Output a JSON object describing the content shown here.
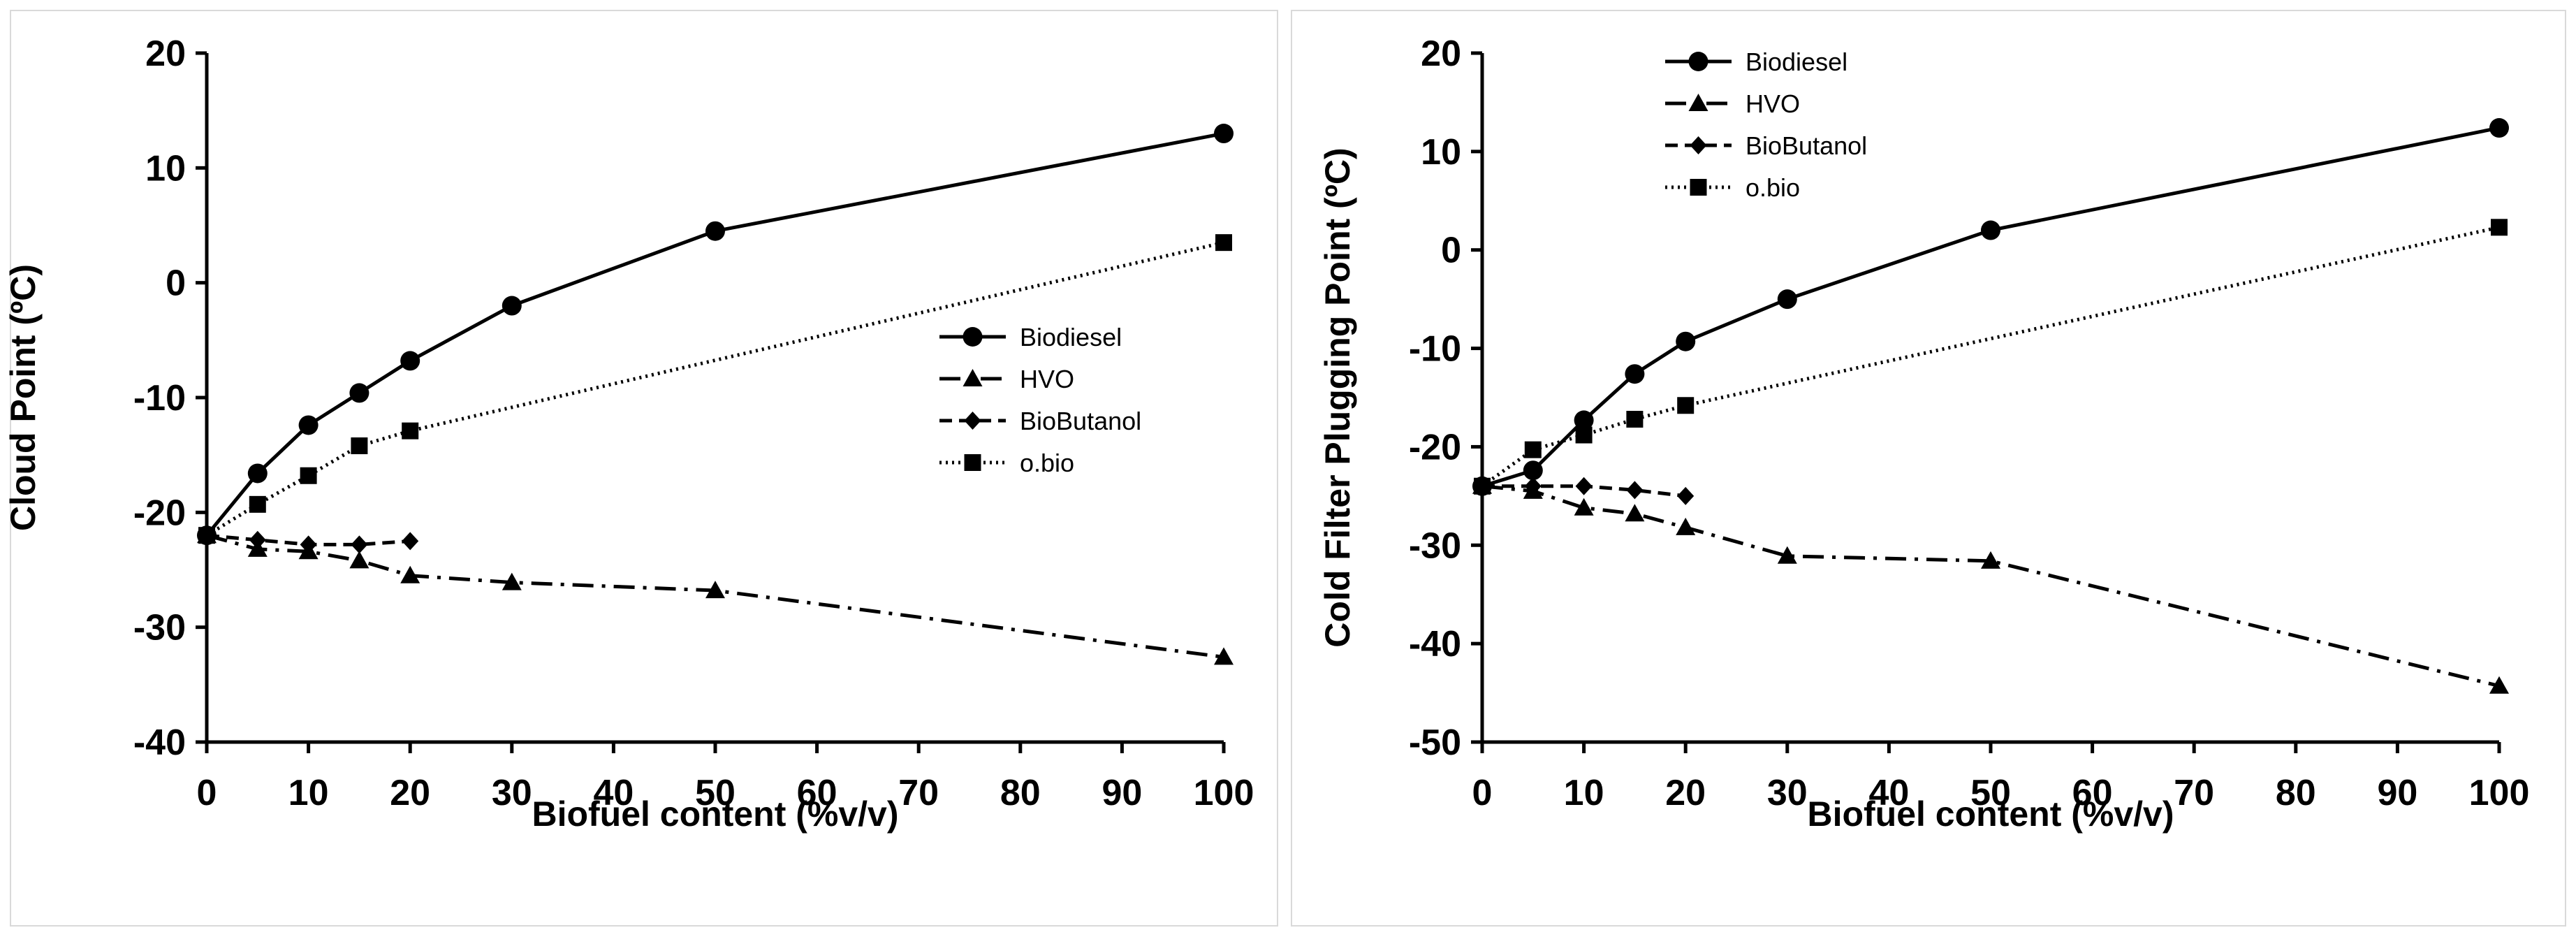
{
  "chart_data": [
    {
      "type": "line",
      "xlabel": "Biofuel content (%v/v)",
      "ylabel": "Cloud Point (ºC)",
      "xlim": [
        0,
        100
      ],
      "ylim": [
        -40,
        20
      ],
      "xticks": [
        0,
        10,
        20,
        30,
        40,
        50,
        60,
        70,
        80,
        90,
        100
      ],
      "yticks": [
        -40,
        -30,
        -20,
        -10,
        0,
        10,
        20
      ],
      "legend_position": "center-right",
      "series": [
        {
          "name": "Biodiesel",
          "marker": "circle",
          "linestyle": "solid",
          "x": [
            0,
            5,
            10,
            15,
            20,
            30,
            50,
            100
          ],
          "y": [
            -22,
            -16.6,
            -12.4,
            -9.6,
            -6.8,
            -2,
            4.5,
            13
          ]
        },
        {
          "name": "HVO",
          "marker": "triangle",
          "linestyle": "dashdot",
          "x": [
            0,
            5,
            10,
            15,
            20,
            30,
            50,
            100
          ],
          "y": [
            -22,
            -23.2,
            -23.4,
            -24.2,
            -25.5,
            -26.1,
            -26.8,
            -32.6
          ]
        },
        {
          "name": "BioButanol",
          "marker": "diamond",
          "linestyle": "dashed",
          "x": [
            0,
            5,
            10,
            15,
            20
          ],
          "y": [
            -22,
            -22.4,
            -22.8,
            -22.8,
            -22.5
          ]
        },
        {
          "name": "o.bio",
          "marker": "square",
          "linestyle": "dotted",
          "x": [
            0,
            5,
            10,
            15,
            20,
            100
          ],
          "y": [
            -22,
            -19.3,
            -16.8,
            -14.2,
            -12.9,
            3.5
          ]
        }
      ]
    },
    {
      "type": "line",
      "xlabel": "Biofuel content (%v/v)",
      "ylabel": "Cold Filter Plugging Point (ºC)",
      "xlim": [
        0,
        100
      ],
      "ylim": [
        -50,
        20
      ],
      "xticks": [
        0,
        10,
        20,
        30,
        40,
        50,
        60,
        70,
        80,
        90,
        100
      ],
      "yticks": [
        -50,
        -40,
        -30,
        -20,
        -10,
        0,
        10,
        20
      ],
      "legend_position": "top-left",
      "series": [
        {
          "name": "Biodiesel",
          "marker": "circle",
          "linestyle": "solid",
          "x": [
            0,
            5,
            10,
            15,
            20,
            30,
            50,
            100
          ],
          "y": [
            -24,
            -22.4,
            -17.3,
            -12.6,
            -9.3,
            -5,
            2,
            12.4
          ]
        },
        {
          "name": "HVO",
          "marker": "triangle",
          "linestyle": "dashdot",
          "x": [
            0,
            5,
            10,
            15,
            20,
            30,
            50,
            100
          ],
          "y": [
            -24,
            -24.5,
            -26.2,
            -26.8,
            -28.2,
            -31.1,
            -31.6,
            -44.3
          ]
        },
        {
          "name": "BioButanol",
          "marker": "diamond",
          "linestyle": "dashed",
          "x": [
            0,
            5,
            10,
            15,
            20
          ],
          "y": [
            -24,
            -24,
            -24,
            -24.4,
            -25
          ]
        },
        {
          "name": "o.bio",
          "marker": "square",
          "linestyle": "dotted",
          "x": [
            0,
            5,
            10,
            15,
            20,
            100
          ],
          "y": [
            -24,
            -20.3,
            -18.8,
            -17.2,
            -15.8,
            2.3
          ]
        }
      ]
    }
  ]
}
